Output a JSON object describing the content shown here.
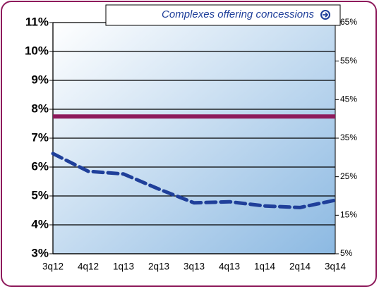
{
  "chart_data": {
    "type": "line",
    "categories": [
      "3q12",
      "4q12",
      "1q13",
      "2q13",
      "3q13",
      "4q13",
      "1q14",
      "2q14",
      "3q14"
    ],
    "series": [
      {
        "color": "#8e1b5c",
        "axis": "y",
        "line_style": "solid",
        "values": [
          7.75,
          7.75,
          7.75,
          7.75,
          7.75,
          7.75,
          7.75,
          7.75,
          7.75
        ]
      },
      {
        "name": "Complexes offering concessions",
        "color": "#1f3f9a",
        "axis": "y2",
        "line_style": "dashed",
        "values": [
          31,
          26.4,
          25.7,
          21.8,
          18.2,
          18.5,
          17.4,
          17,
          18.9
        ]
      }
    ],
    "ylim": [
      3,
      11
    ],
    "yticks": [
      {
        "value": 3,
        "label": "3%"
      },
      {
        "value": 4,
        "label": "4%"
      },
      {
        "value": 5,
        "label": "5%"
      },
      {
        "value": 6,
        "label": "6%"
      },
      {
        "value": 7,
        "label": "7%"
      },
      {
        "value": 8,
        "label": "8%"
      },
      {
        "value": 9,
        "label": "9%"
      },
      {
        "value": 10,
        "label": "10%"
      },
      {
        "value": 11,
        "label": "11%"
      }
    ],
    "y2lim": [
      5,
      65
    ],
    "y2ticks": [
      {
        "value": 5,
        "label": "5%"
      },
      {
        "value": 15,
        "label": "15%"
      },
      {
        "value": 25,
        "label": "25%"
      },
      {
        "value": 35,
        "label": "35%"
      },
      {
        "value": 45,
        "label": "45%"
      },
      {
        "value": 55,
        "label": "55%"
      },
      {
        "value": 65,
        "label": "65%"
      }
    ],
    "grid": true,
    "legend": "top"
  }
}
